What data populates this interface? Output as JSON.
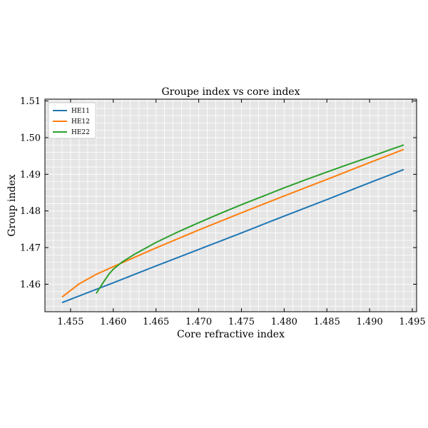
{
  "chart_data": {
    "type": "line",
    "title": "Groupe index vs core index",
    "xlabel": "Core refractive index",
    "ylabel": "Group index",
    "xlim": [
      1.452,
      1.4955
    ],
    "ylim": [
      1.4525,
      1.5105
    ],
    "xticks": [
      1.455,
      1.46,
      1.465,
      1.47,
      1.475,
      1.48,
      1.485,
      1.49,
      1.495
    ],
    "xtick_labels": [
      "1.455",
      "1.460",
      "1.465",
      "1.470",
      "1.475",
      "1.480",
      "1.485",
      "1.490",
      "1.495"
    ],
    "yticks": [
      1.46,
      1.47,
      1.48,
      1.49,
      1.5,
      1.51
    ],
    "ytick_labels": [
      "1.46",
      "1.47",
      "1.48",
      "1.49",
      "1.50",
      "1.51"
    ],
    "grid": true,
    "legend_position": "top-left",
    "background": "#e5e5e5",
    "series": [
      {
        "name": "HE11",
        "color": "#1f77b4",
        "x": [
          1.454,
          1.46,
          1.465,
          1.47,
          1.475,
          1.48,
          1.485,
          1.49,
          1.494
        ],
        "y": [
          1.455,
          1.4604,
          1.465,
          1.4695,
          1.474,
          1.4786,
          1.4831,
          1.4877,
          1.4913
        ]
      },
      {
        "name": "HE12",
        "color": "#ff7f0e",
        "x": [
          1.454,
          1.456,
          1.458,
          1.46,
          1.465,
          1.47,
          1.475,
          1.48,
          1.485,
          1.49,
          1.494
        ],
        "y": [
          1.4565,
          1.4601,
          1.4627,
          1.4648,
          1.4699,
          1.4748,
          1.4795,
          1.4841,
          1.4886,
          1.4932,
          1.4968
        ]
      },
      {
        "name": "HE22",
        "color": "#2ca02c",
        "x": [
          1.458,
          1.4585,
          1.459,
          1.4595,
          1.46,
          1.461,
          1.4625,
          1.465,
          1.4675,
          1.47,
          1.4725,
          1.475,
          1.4775,
          1.48,
          1.4825,
          1.485,
          1.4875,
          1.49,
          1.4925,
          1.494
        ],
        "y": [
          1.4575,
          1.4593,
          1.4611,
          1.4628,
          1.4641,
          1.466,
          1.4682,
          1.4714,
          1.4742,
          1.4768,
          1.4793,
          1.4817,
          1.484,
          1.4863,
          1.4885,
          1.4906,
          1.4927,
          1.4947,
          1.4968,
          1.498
        ]
      }
    ]
  }
}
